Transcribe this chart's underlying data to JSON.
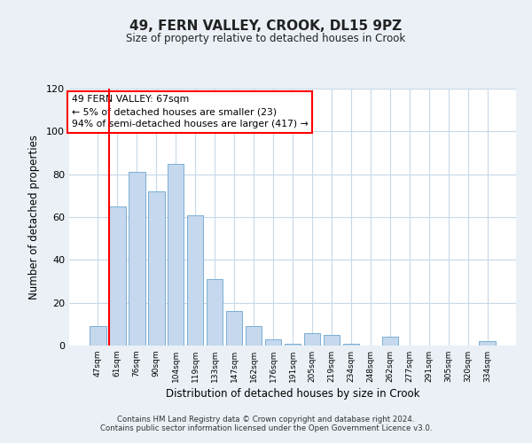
{
  "title": "49, FERN VALLEY, CROOK, DL15 9PZ",
  "subtitle": "Size of property relative to detached houses in Crook",
  "xlabel": "Distribution of detached houses by size in Crook",
  "ylabel": "Number of detached properties",
  "bar_labels": [
    "47sqm",
    "61sqm",
    "76sqm",
    "90sqm",
    "104sqm",
    "119sqm",
    "133sqm",
    "147sqm",
    "162sqm",
    "176sqm",
    "191sqm",
    "205sqm",
    "219sqm",
    "234sqm",
    "248sqm",
    "262sqm",
    "277sqm",
    "291sqm",
    "305sqm",
    "320sqm",
    "334sqm"
  ],
  "bar_values": [
    9,
    65,
    81,
    72,
    85,
    61,
    31,
    16,
    9,
    3,
    1,
    6,
    5,
    1,
    0,
    4,
    0,
    0,
    0,
    0,
    2
  ],
  "bar_color": "#c5d8ed",
  "bar_edge_color": "#7aafd4",
  "red_line_x": 1.0,
  "ylim": [
    0,
    120
  ],
  "yticks": [
    0,
    20,
    40,
    60,
    80,
    100,
    120
  ],
  "annotation_title": "49 FERN VALLEY: 67sqm",
  "annotation_line1": "← 5% of detached houses are smaller (23)",
  "annotation_line2": "94% of semi-detached houses are larger (417) →",
  "footer1": "Contains HM Land Registry data © Crown copyright and database right 2024.",
  "footer2": "Contains public sector information licensed under the Open Government Licence v3.0.",
  "background_color": "#eaf0f6",
  "plot_bg_color": "#ffffff",
  "grid_color": "#c8d8e8"
}
